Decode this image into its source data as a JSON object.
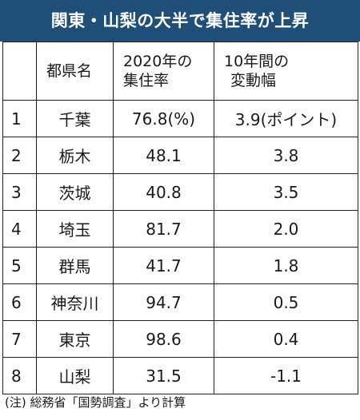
{
  "title": "関東・山梨の大半で集住率が上昇",
  "header": {
    "rank": "",
    "prefecture": "都県名",
    "rate_line1": "2020年の",
    "rate_line2": "集住率",
    "change_line1": "10年間の",
    "change_line2": "変動幅"
  },
  "rows": [
    {
      "rank": "1",
      "prefecture": "千葉",
      "rate": "76.8(%)",
      "change": "3.9(ポイント)"
    },
    {
      "rank": "2",
      "prefecture": "栃木",
      "rate": "48.1",
      "change": "3.8"
    },
    {
      "rank": "3",
      "prefecture": "茨城",
      "rate": "40.8",
      "change": "3.5"
    },
    {
      "rank": "4",
      "prefecture": "埼玉",
      "rate": "81.7",
      "change": "2.0"
    },
    {
      "rank": "5",
      "prefecture": "群馬",
      "rate": "41.7",
      "change": "1.8"
    },
    {
      "rank": "6",
      "prefecture": "神奈川",
      "rate": "94.7",
      "change": "0.5"
    },
    {
      "rank": "7",
      "prefecture": "東京",
      "rate": "98.6",
      "change": "0.4"
    },
    {
      "rank": "8",
      "prefecture": "山梨",
      "rate": "31.5",
      "change": "-1.1"
    }
  ],
  "footnote": "(注) 総務省「国勢調査」より計算",
  "colors": {
    "title_background": "#1f4e79",
    "title_text": "#ffffff",
    "border": "#222222"
  }
}
